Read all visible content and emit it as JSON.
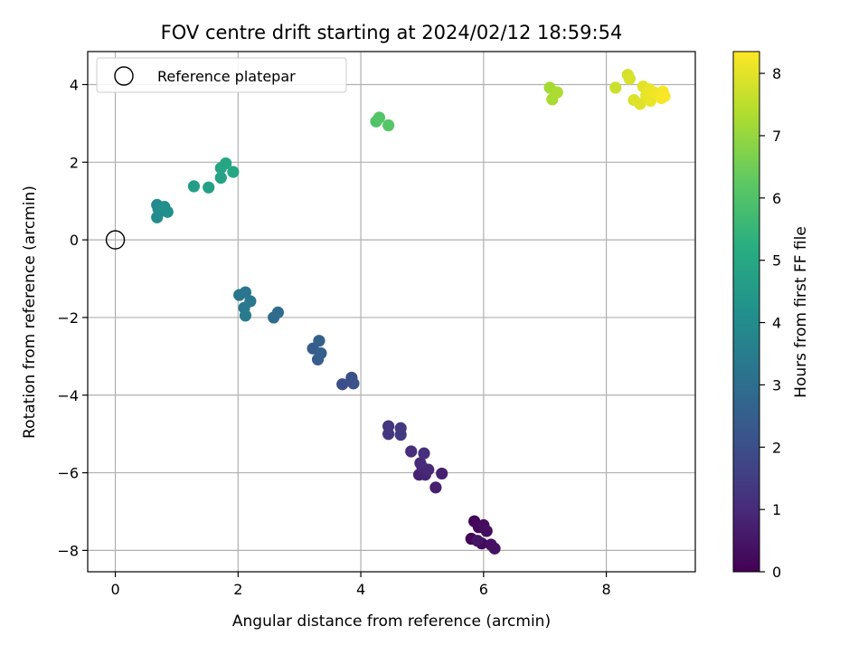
{
  "chart_data": {
    "type": "scatter",
    "title": "FOV centre drift starting at 2024/02/12 18:59:54",
    "xlabel": "Angular distance from reference (arcmin)",
    "ylabel": "Rotation from reference (arcmin)",
    "xlim": [
      -0.45,
      9.45
    ],
    "ylim": [
      -8.55,
      4.85
    ],
    "xticks": [
      0,
      2,
      4,
      6,
      8
    ],
    "yticks": [
      -8,
      -6,
      -4,
      -2,
      0,
      2,
      4
    ],
    "grid": true,
    "legend": {
      "location": "upper-left",
      "entries": [
        "Reference platepar"
      ]
    },
    "reference_point": {
      "x": 0,
      "y": 0
    },
    "colorbar": {
      "label": "Hours from first FF file",
      "colormap": "viridis",
      "range": [
        0,
        8.35
      ],
      "ticks": [
        0,
        1,
        2,
        3,
        4,
        5,
        6,
        7,
        8
      ]
    },
    "points": [
      {
        "x": 5.8,
        "y": -7.7,
        "h": 0.05
      },
      {
        "x": 5.85,
        "y": -7.25,
        "h": 0.1
      },
      {
        "x": 5.92,
        "y": -7.4,
        "h": 0.15
      },
      {
        "x": 5.97,
        "y": -7.82,
        "h": 0.2
      },
      {
        "x": 6.0,
        "y": -7.35,
        "h": 0.25
      },
      {
        "x": 6.05,
        "y": -7.5,
        "h": 0.3
      },
      {
        "x": 6.12,
        "y": -7.85,
        "h": 0.35
      },
      {
        "x": 6.18,
        "y": -7.95,
        "h": 0.4
      },
      {
        "x": 5.9,
        "y": -7.75,
        "h": 0.45
      },
      {
        "x": 5.22,
        "y": -6.38,
        "h": 0.7
      },
      {
        "x": 5.32,
        "y": -6.02,
        "h": 0.75
      },
      {
        "x": 4.95,
        "y": -6.05,
        "h": 0.8
      },
      {
        "x": 5.05,
        "y": -6.05,
        "h": 0.85
      },
      {
        "x": 5.0,
        "y": -5.85,
        "h": 0.9
      },
      {
        "x": 5.1,
        "y": -5.92,
        "h": 0.95
      },
      {
        "x": 4.97,
        "y": -5.75,
        "h": 1.0
      },
      {
        "x": 4.82,
        "y": -5.45,
        "h": 1.05
      },
      {
        "x": 5.03,
        "y": -5.5,
        "h": 1.1
      },
      {
        "x": 4.45,
        "y": -4.8,
        "h": 1.3
      },
      {
        "x": 4.45,
        "y": -5.0,
        "h": 1.35
      },
      {
        "x": 4.65,
        "y": -4.85,
        "h": 1.4
      },
      {
        "x": 4.65,
        "y": -5.02,
        "h": 1.45
      },
      {
        "x": 3.7,
        "y": -3.72,
        "h": 2.0
      },
      {
        "x": 3.85,
        "y": -3.55,
        "h": 2.05
      },
      {
        "x": 3.88,
        "y": -3.7,
        "h": 2.1
      },
      {
        "x": 3.22,
        "y": -2.8,
        "h": 2.4
      },
      {
        "x": 3.3,
        "y": -3.08,
        "h": 2.45
      },
      {
        "x": 3.35,
        "y": -2.92,
        "h": 2.5
      },
      {
        "x": 3.32,
        "y": -2.6,
        "h": 2.55
      },
      {
        "x": 2.58,
        "y": -2.0,
        "h": 2.9
      },
      {
        "x": 2.65,
        "y": -1.87,
        "h": 2.95
      },
      {
        "x": 2.02,
        "y": -1.42,
        "h": 3.2
      },
      {
        "x": 2.12,
        "y": -1.35,
        "h": 3.25
      },
      {
        "x": 2.2,
        "y": -1.58,
        "h": 3.3
      },
      {
        "x": 2.1,
        "y": -1.75,
        "h": 3.35
      },
      {
        "x": 2.12,
        "y": -1.95,
        "h": 3.4
      },
      {
        "x": 0.68,
        "y": 0.9,
        "h": 3.9
      },
      {
        "x": 0.7,
        "y": 0.8,
        "h": 3.95
      },
      {
        "x": 0.68,
        "y": 0.58,
        "h": 4.0
      },
      {
        "x": 0.75,
        "y": 0.75,
        "h": 4.05
      },
      {
        "x": 0.8,
        "y": 0.85,
        "h": 4.1
      },
      {
        "x": 0.85,
        "y": 0.72,
        "h": 4.15
      },
      {
        "x": 1.28,
        "y": 1.38,
        "h": 4.6
      },
      {
        "x": 1.52,
        "y": 1.35,
        "h": 4.7
      },
      {
        "x": 1.72,
        "y": 1.6,
        "h": 4.8
      },
      {
        "x": 1.72,
        "y": 1.85,
        "h": 4.85
      },
      {
        "x": 1.8,
        "y": 1.97,
        "h": 4.9
      },
      {
        "x": 1.92,
        "y": 1.75,
        "h": 4.95
      },
      {
        "x": 4.25,
        "y": 3.05,
        "h": 6.0
      },
      {
        "x": 4.3,
        "y": 3.15,
        "h": 6.05
      },
      {
        "x": 4.45,
        "y": 2.95,
        "h": 6.1
      },
      {
        "x": 7.08,
        "y": 3.92,
        "h": 7.2
      },
      {
        "x": 7.12,
        "y": 3.62,
        "h": 7.25
      },
      {
        "x": 7.2,
        "y": 3.8,
        "h": 7.3
      },
      {
        "x": 8.15,
        "y": 3.92,
        "h": 7.7
      },
      {
        "x": 8.35,
        "y": 4.25,
        "h": 7.8
      },
      {
        "x": 8.38,
        "y": 4.15,
        "h": 7.85
      },
      {
        "x": 8.45,
        "y": 3.6,
        "h": 7.9
      },
      {
        "x": 8.55,
        "y": 3.5,
        "h": 7.95
      },
      {
        "x": 8.6,
        "y": 3.95,
        "h": 8.0
      },
      {
        "x": 8.65,
        "y": 3.72,
        "h": 8.05
      },
      {
        "x": 8.7,
        "y": 3.88,
        "h": 8.1
      },
      {
        "x": 8.72,
        "y": 3.58,
        "h": 8.12
      },
      {
        "x": 8.78,
        "y": 3.8,
        "h": 8.15
      },
      {
        "x": 8.85,
        "y": 3.72,
        "h": 8.2
      },
      {
        "x": 8.9,
        "y": 3.65,
        "h": 8.22
      },
      {
        "x": 8.92,
        "y": 3.82,
        "h": 8.25
      },
      {
        "x": 8.95,
        "y": 3.7,
        "h": 8.3
      }
    ]
  }
}
